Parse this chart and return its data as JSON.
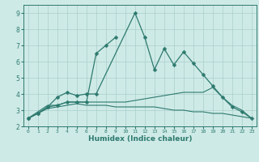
{
  "seg1_x": [
    0,
    1,
    2,
    3,
    4,
    5,
    6,
    7,
    11,
    12,
    13,
    14,
    15,
    16,
    17,
    18,
    19,
    20,
    21,
    22,
    23
  ],
  "seg1_y": [
    2.5,
    2.8,
    3.2,
    3.8,
    4.1,
    3.9,
    4.0,
    4.0,
    9.0,
    7.5,
    5.5,
    6.8,
    5.8,
    6.6,
    5.9,
    5.2,
    4.5,
    3.8,
    3.2,
    2.9,
    2.5
  ],
  "seg2_x": [
    0,
    1,
    2,
    3,
    4,
    5,
    6,
    7,
    8,
    9
  ],
  "seg2_y": [
    2.5,
    2.8,
    3.2,
    3.3,
    3.5,
    3.5,
    3.5,
    6.5,
    7.0,
    7.5
  ],
  "seg3_x": [
    0,
    1,
    2,
    3,
    4,
    5,
    6,
    7,
    8,
    9,
    10,
    11,
    12,
    13,
    14,
    15,
    16,
    17,
    18,
    19,
    20,
    21,
    22,
    23
  ],
  "seg3_y": [
    2.5,
    2.9,
    3.3,
    3.3,
    3.5,
    3.5,
    3.5,
    3.5,
    3.5,
    3.5,
    3.5,
    3.6,
    3.7,
    3.8,
    3.9,
    4.0,
    4.1,
    4.1,
    4.1,
    4.4,
    3.8,
    3.3,
    3.0,
    2.5
  ],
  "seg4_x": [
    0,
    1,
    2,
    3,
    4,
    5,
    6,
    7,
    8,
    9,
    10,
    11,
    12,
    13,
    14,
    15,
    16,
    17,
    18,
    19,
    20,
    21,
    22,
    23
  ],
  "seg4_y": [
    2.5,
    2.8,
    3.1,
    3.2,
    3.3,
    3.4,
    3.3,
    3.3,
    3.3,
    3.2,
    3.2,
    3.2,
    3.2,
    3.2,
    3.1,
    3.0,
    3.0,
    2.9,
    2.9,
    2.8,
    2.8,
    2.7,
    2.6,
    2.5
  ],
  "line_color": "#2d7a6e",
  "bg_color": "#ceeae7",
  "grid_color": "#aacfcb",
  "xlabel": "Humidex (Indice chaleur)",
  "xlim": [
    -0.5,
    23.5
  ],
  "ylim": [
    2.0,
    9.5
  ],
  "yticks": [
    2,
    3,
    4,
    5,
    6,
    7,
    8,
    9
  ],
  "xticks": [
    0,
    1,
    2,
    3,
    4,
    5,
    6,
    7,
    8,
    9,
    10,
    11,
    12,
    13,
    14,
    15,
    16,
    17,
    18,
    19,
    20,
    21,
    22,
    23
  ]
}
